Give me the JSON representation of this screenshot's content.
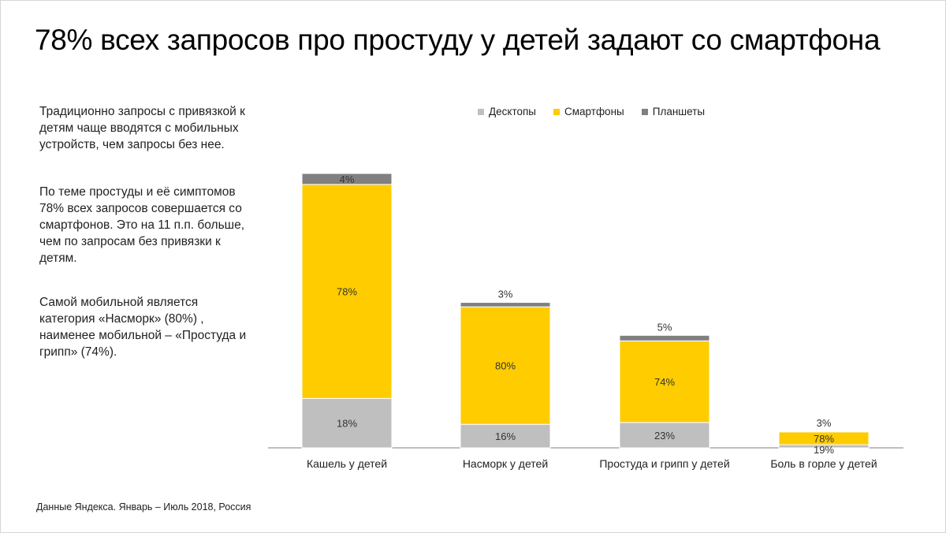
{
  "title": "78% всех запросов про простуду у детей задают со смартфона",
  "description": [
    "Традиционно запросы с привязкой к детям чаще вводятся с мобильных устройств, чем запросы без нее.",
    "По теме простуды и её симптомов 78% всех запросов совершается со смартфонов. Это на 11 п.п. больше, чем по запросам без привязки к детям.",
    "Самой мобильной является категория «Насморк» (80%) , наименее мобильной – «Простуда и грипп» (74%)."
  ],
  "source": "Данные Яндекса. Январь – Июль 2018, Россия",
  "colors": {
    "desktop": "#bfbfbf",
    "smartphone": "#ffcc00",
    "tablet": "#808080"
  },
  "chart_data": {
    "type": "bar",
    "stacked": true,
    "categories": [
      "Кашель у детей",
      "Насморк  у детей",
      "Простуда и грипп у детей",
      "Боль в горле у детей"
    ],
    "series": [
      {
        "name": "Десктопы",
        "values": [
          18,
          16,
          23,
          19
        ],
        "labels": [
          "18%",
          "16%",
          "23%",
          "19%"
        ]
      },
      {
        "name": "Смартфоны",
        "values": [
          78,
          80,
          74,
          78
        ],
        "labels": [
          "78%",
          "80%",
          "74%",
          "78%"
        ]
      },
      {
        "name": "Планшеты",
        "values": [
          4,
          3,
          5,
          3
        ],
        "labels": [
          "4%",
          "3%",
          "5%",
          "3%"
        ]
      }
    ],
    "legend_position": "top",
    "grid": false,
    "y_axis_visible": false
  }
}
